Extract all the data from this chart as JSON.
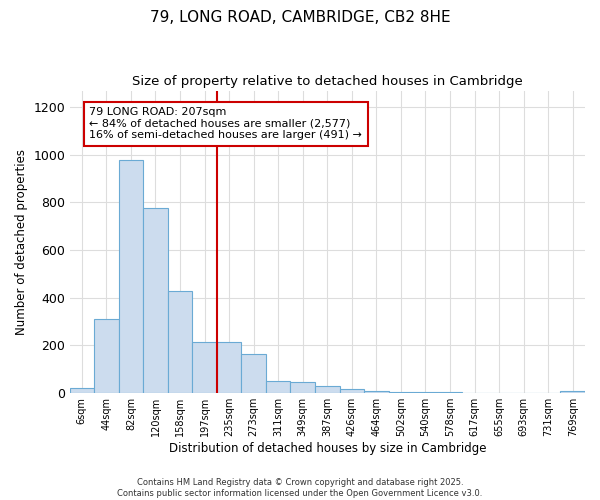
{
  "title": "79, LONG ROAD, CAMBRIDGE, CB2 8HE",
  "subtitle": "Size of property relative to detached houses in Cambridge",
  "xlabel": "Distribution of detached houses by size in Cambridge",
  "ylabel": "Number of detached properties",
  "bin_labels": [
    "6sqm",
    "44sqm",
    "82sqm",
    "120sqm",
    "158sqm",
    "197sqm",
    "235sqm",
    "273sqm",
    "311sqm",
    "349sqm",
    "387sqm",
    "426sqm",
    "464sqm",
    "502sqm",
    "540sqm",
    "578sqm",
    "617sqm",
    "655sqm",
    "693sqm",
    "731sqm",
    "769sqm"
  ],
  "bar_heights": [
    20,
    310,
    980,
    775,
    430,
    215,
    215,
    165,
    50,
    45,
    30,
    15,
    10,
    3,
    2,
    2,
    1,
    0,
    0,
    0,
    10
  ],
  "bar_color": "#ccdcee",
  "bar_edge_color": "#6aaad4",
  "vline_x": 5.5,
  "vline_color": "#cc0000",
  "annotation_text": "79 LONG ROAD: 207sqm\n← 84% of detached houses are smaller (2,577)\n16% of semi-detached houses are larger (491) →",
  "annotation_box_facecolor": "white",
  "annotation_box_edgecolor": "#cc0000",
  "ylim_max": 1270,
  "yticks": [
    0,
    200,
    400,
    600,
    800,
    1000,
    1200
  ],
  "background_color": "#ffffff",
  "grid_color": "#dddddd",
  "footer_line1": "Contains HM Land Registry data © Crown copyright and database right 2025.",
  "footer_line2": "Contains public sector information licensed under the Open Government Licence v3.0."
}
